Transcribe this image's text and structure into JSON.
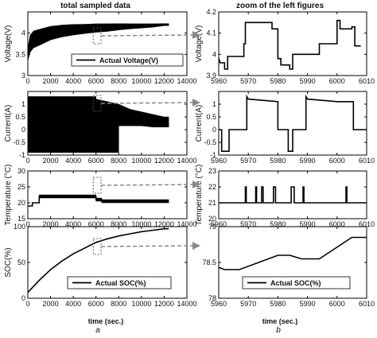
{
  "titles": {
    "left": "total sampled data",
    "right": "zoom of the left figures"
  },
  "sublabels": {
    "left": "a",
    "right": "b"
  },
  "xlabel": "time (sec.)",
  "chart_data": [
    {
      "id": "L1",
      "type": "line",
      "ylabel": "Voltage(V)",
      "xlim": [
        0,
        14000
      ],
      "xticks": [
        0,
        2000,
        4000,
        6000,
        8000,
        10000,
        12000,
        14000
      ],
      "ylim": [
        3,
        4.5
      ],
      "yticks": [
        3,
        3.5,
        4
      ],
      "legend": "Actual Voltage(V)",
      "series": [
        {
          "name": "Actual Voltage(V)",
          "x": [
            0,
            200,
            500,
            1000,
            1500,
            2000,
            3000,
            4000,
            5000,
            6000,
            7000,
            8000,
            9000,
            10000,
            11000,
            12000,
            12400
          ],
          "y": [
            3.5,
            3.75,
            3.85,
            3.9,
            3.95,
            4.0,
            4.05,
            4.08,
            4.1,
            4.12,
            4.13,
            4.15,
            4.16,
            4.17,
            4.18,
            4.2,
            4.2
          ],
          "band": [
            0.3,
            0.4,
            0.4,
            0.38,
            0.35,
            0.32,
            0.28,
            0.25,
            0.22,
            0.2,
            0.18,
            0.15,
            0.12,
            0.1,
            0.08,
            0.05,
            0.05
          ]
        }
      ]
    },
    {
      "id": "L2",
      "type": "area",
      "ylabel": "Current(A)",
      "xlim": [
        0,
        14000
      ],
      "xticks": [
        0,
        2000,
        4000,
        6000,
        8000,
        10000,
        12000,
        14000
      ],
      "ylim": [
        -1,
        1.5
      ],
      "yticks": [
        -1,
        -0.5,
        0,
        0.5,
        1
      ],
      "series": [
        {
          "name": "",
          "x": [
            0,
            6000,
            6001,
            8000,
            8001,
            9000,
            10000,
            11000,
            12000,
            12400
          ],
          "upper": [
            1.3,
            1.3,
            1.2,
            1.0,
            1.0,
            0.8,
            0.7,
            0.6,
            0.5,
            0.5
          ],
          "lower": [
            -0.9,
            -0.9,
            -0.9,
            -0.9,
            0.15,
            0.15,
            0.15,
            0.1,
            0.1,
            0.1
          ]
        }
      ]
    },
    {
      "id": "L3",
      "type": "line",
      "ylabel": "Temperature (°C)",
      "xlim": [
        0,
        14000
      ],
      "xticks": [
        0,
        2000,
        4000,
        6000,
        8000,
        10000,
        12000,
        14000
      ],
      "ylim": [
        15,
        30
      ],
      "yticks": [
        15,
        20,
        25,
        30
      ],
      "series": [
        {
          "name": "",
          "x": [
            0,
            400,
            400,
            1000,
            1000,
            6000,
            6000,
            6500,
            6500,
            12400
          ],
          "y": [
            19,
            19,
            20,
            20,
            22,
            22,
            21,
            21,
            20.5,
            20.5
          ],
          "band": [
            0,
            0,
            0,
            0,
            1,
            1,
            1,
            1,
            1,
            1
          ]
        }
      ]
    },
    {
      "id": "L4",
      "type": "line",
      "ylabel": "SOC(%)",
      "xlim": [
        0,
        14000
      ],
      "xticks": [
        0,
        2000,
        4000,
        6000,
        8000,
        10000,
        12000,
        14000
      ],
      "ylim": [
        0,
        100
      ],
      "yticks": [
        0,
        50,
        100
      ],
      "legend": "Actual SOC(%)",
      "series": [
        {
          "name": "Actual SOC(%)",
          "x": [
            0,
            1000,
            2000,
            3000,
            4000,
            5000,
            6000,
            7000,
            8000,
            9000,
            10000,
            11000,
            12000,
            12400
          ],
          "y": [
            8,
            25,
            40,
            52,
            62,
            70,
            78,
            83,
            87,
            90,
            93,
            95,
            97,
            97
          ]
        }
      ]
    },
    {
      "id": "R1",
      "type": "line",
      "ylabel": "Voltage(V)",
      "xlim": [
        5960,
        6010
      ],
      "xticks": [
        5960,
        5970,
        5980,
        5990,
        6000,
        6010
      ],
      "ylim": [
        3.9,
        4.2
      ],
      "yticks": [
        3.9,
        4,
        4.1,
        4.2
      ],
      "series": [
        {
          "name": "",
          "x": [
            5960,
            5960.5,
            5962,
            5962,
            5963,
            5963,
            5968.5,
            5968.5,
            5969,
            5969,
            5978,
            5978,
            5980,
            5980,
            5981,
            5981,
            5984,
            5984,
            5985,
            5985,
            5994,
            5994,
            6000,
            6000,
            6001,
            6001,
            6005,
            6005,
            6006,
            6006,
            6008
          ],
          "y": [
            3.98,
            3.96,
            3.96,
            3.93,
            3.93,
            3.99,
            3.99,
            4.05,
            4.05,
            4.15,
            4.15,
            4.12,
            4.12,
            3.98,
            3.98,
            3.95,
            3.95,
            3.93,
            3.93,
            4.0,
            4.0,
            4.05,
            4.05,
            4.16,
            4.16,
            4.12,
            4.12,
            4.13,
            4.13,
            4.04,
            4.04
          ]
        }
      ]
    },
    {
      "id": "R2",
      "type": "line",
      "ylabel": "Current(A)",
      "xlim": [
        5960,
        6010
      ],
      "xticks": [
        5960,
        5970,
        5980,
        5990,
        6000,
        6010
      ],
      "ylim": [
        -1,
        1.5
      ],
      "yticks": [
        -1,
        -0.5,
        0,
        0.5,
        1
      ],
      "series": [
        {
          "name": "",
          "x": [
            5960,
            5961,
            5961,
            5963.5,
            5963.5,
            5969.5,
            5969.5,
            5970,
            5975,
            5980,
            5980,
            5983.5,
            5983.5,
            5985,
            5985,
            5989.5,
            5989.5,
            5990,
            5995,
            6000,
            6000,
            6005.5,
            6005.5,
            6010
          ],
          "y": [
            0,
            0,
            -0.85,
            -0.85,
            0,
            0,
            1.3,
            1.2,
            1.15,
            1.1,
            0,
            0,
            -0.85,
            -0.85,
            0,
            0,
            1.3,
            1.2,
            1.15,
            1.1,
            1.1,
            1.1,
            0,
            0
          ]
        }
      ]
    },
    {
      "id": "R3",
      "type": "line",
      "ylabel": "Temperature (°C)",
      "xlim": [
        5960,
        6010
      ],
      "xticks": [
        5960,
        5970,
        5980,
        5990,
        6000,
        6010
      ],
      "ylim": [
        20,
        23
      ],
      "yticks": [
        20,
        21,
        22,
        23
      ],
      "series": [
        {
          "name": "",
          "x": [
            5960,
            5969,
            5969,
            5969.3,
            5969.3,
            5972.5,
            5972.5,
            5972.8,
            5972.8,
            5974.5,
            5974.5,
            5975,
            5975,
            5978.5,
            5978.5,
            5979.2,
            5979.2,
            5984.5,
            5984.5,
            5985.5,
            5985.5,
            5988.5,
            5988.5,
            5988.8,
            5988.8,
            6003,
            6003,
            6003.3,
            6003.3,
            6010
          ],
          "y": [
            21,
            21,
            22,
            22,
            21,
            21,
            22,
            22,
            21,
            21,
            22,
            22,
            21,
            21,
            22,
            22,
            21,
            21,
            22,
            22,
            21,
            21,
            22,
            22,
            21,
            21,
            22,
            22,
            21,
            21
          ]
        }
      ]
    },
    {
      "id": "R4",
      "type": "line",
      "ylabel": "",
      "xlim": [
        5960,
        6010
      ],
      "xticks": [
        5960,
        5970,
        5980,
        5990,
        6000,
        6010
      ],
      "ylim": [
        78,
        79
      ],
      "yticks": [
        78,
        78.5,
        79
      ],
      "legend": "Actual SOC(%)",
      "series": [
        {
          "name": "Actual SOC(%)",
          "x": [
            5960,
            5962,
            5967,
            5980,
            5984,
            5988,
            5994,
            6005,
            6010
          ],
          "y": [
            78.43,
            78.4,
            78.4,
            78.6,
            78.6,
            78.55,
            78.55,
            78.85,
            78.85
          ]
        }
      ]
    }
  ]
}
